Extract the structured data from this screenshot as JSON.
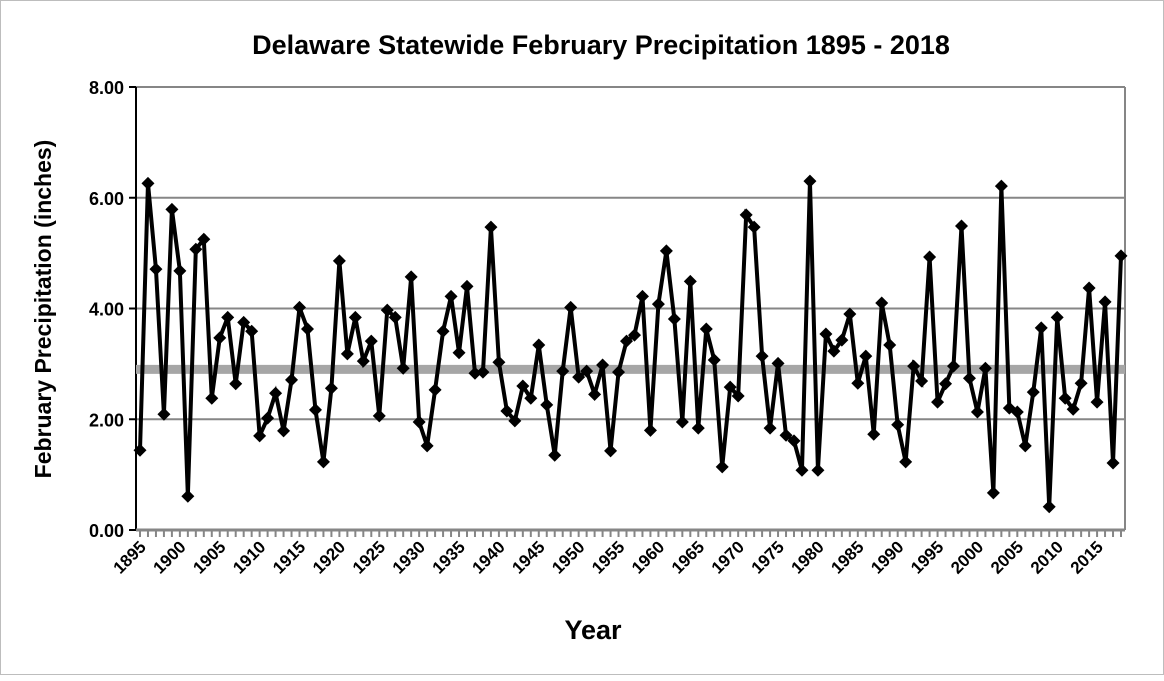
{
  "chart_data": {
    "type": "line",
    "title": "Delaware Statewide February Precipitation 1895 - 2018",
    "xlabel": "Year",
    "ylabel": "February Precipitation (inches)",
    "ylim": [
      0,
      8
    ],
    "yticks": [
      "0.00",
      "2.00",
      "4.00",
      "6.00",
      "8.00"
    ],
    "xticks": [
      "1895",
      "1900",
      "1905",
      "1910",
      "1915",
      "1920",
      "1925",
      "1930",
      "1935",
      "1940",
      "1945",
      "1950",
      "1955",
      "1960",
      "1965",
      "1970",
      "1975",
      "1980",
      "1985",
      "1990",
      "1995",
      "2000",
      "2005",
      "2010",
      "2015"
    ],
    "grid": true,
    "x_start": 1895,
    "x_end": 2018,
    "average": 2.9,
    "series": [
      {
        "name": "February Precipitation",
        "color": "#000000",
        "values": [
          1.44,
          6.26,
          4.71,
          2.09,
          5.79,
          4.68,
          0.61,
          5.07,
          5.25,
          2.38,
          3.47,
          3.84,
          2.64,
          3.75,
          3.59,
          1.7,
          2.02,
          2.47,
          1.79,
          2.71,
          4.02,
          3.63,
          2.17,
          1.23,
          2.56,
          4.86,
          3.18,
          3.84,
          3.05,
          3.41,
          2.06,
          3.97,
          3.84,
          2.92,
          4.57,
          1.95,
          1.52,
          2.53,
          3.59,
          4.22,
          3.2,
          4.4,
          2.83,
          2.85,
          5.47,
          3.03,
          2.15,
          1.97,
          2.6,
          2.38,
          3.34,
          2.26,
          1.35,
          2.87,
          4.02,
          2.76,
          2.87,
          2.45,
          2.98,
          1.43,
          2.85,
          3.41,
          3.52,
          4.22,
          1.8,
          4.08,
          5.04,
          3.81,
          1.95,
          4.49,
          1.84,
          3.63,
          3.07,
          1.14,
          2.58,
          2.42,
          5.69,
          5.47,
          3.14,
          1.84,
          3.01,
          1.71,
          1.61,
          1.08,
          6.3,
          1.08,
          3.54,
          3.23,
          3.43,
          3.9,
          2.65,
          3.14,
          1.73,
          4.1,
          3.34,
          1.9,
          1.23,
          2.96,
          2.69,
          4.93,
          2.31,
          2.64,
          2.96,
          5.49,
          2.74,
          2.13,
          2.92,
          0.67,
          6.21,
          2.2,
          2.13,
          1.52,
          2.49,
          3.65,
          0.42,
          3.84,
          2.38,
          2.18,
          2.65,
          4.37,
          2.31,
          4.12,
          1.21,
          4.95
        ]
      }
    ],
    "average_line_color": "#a6a6a6"
  }
}
